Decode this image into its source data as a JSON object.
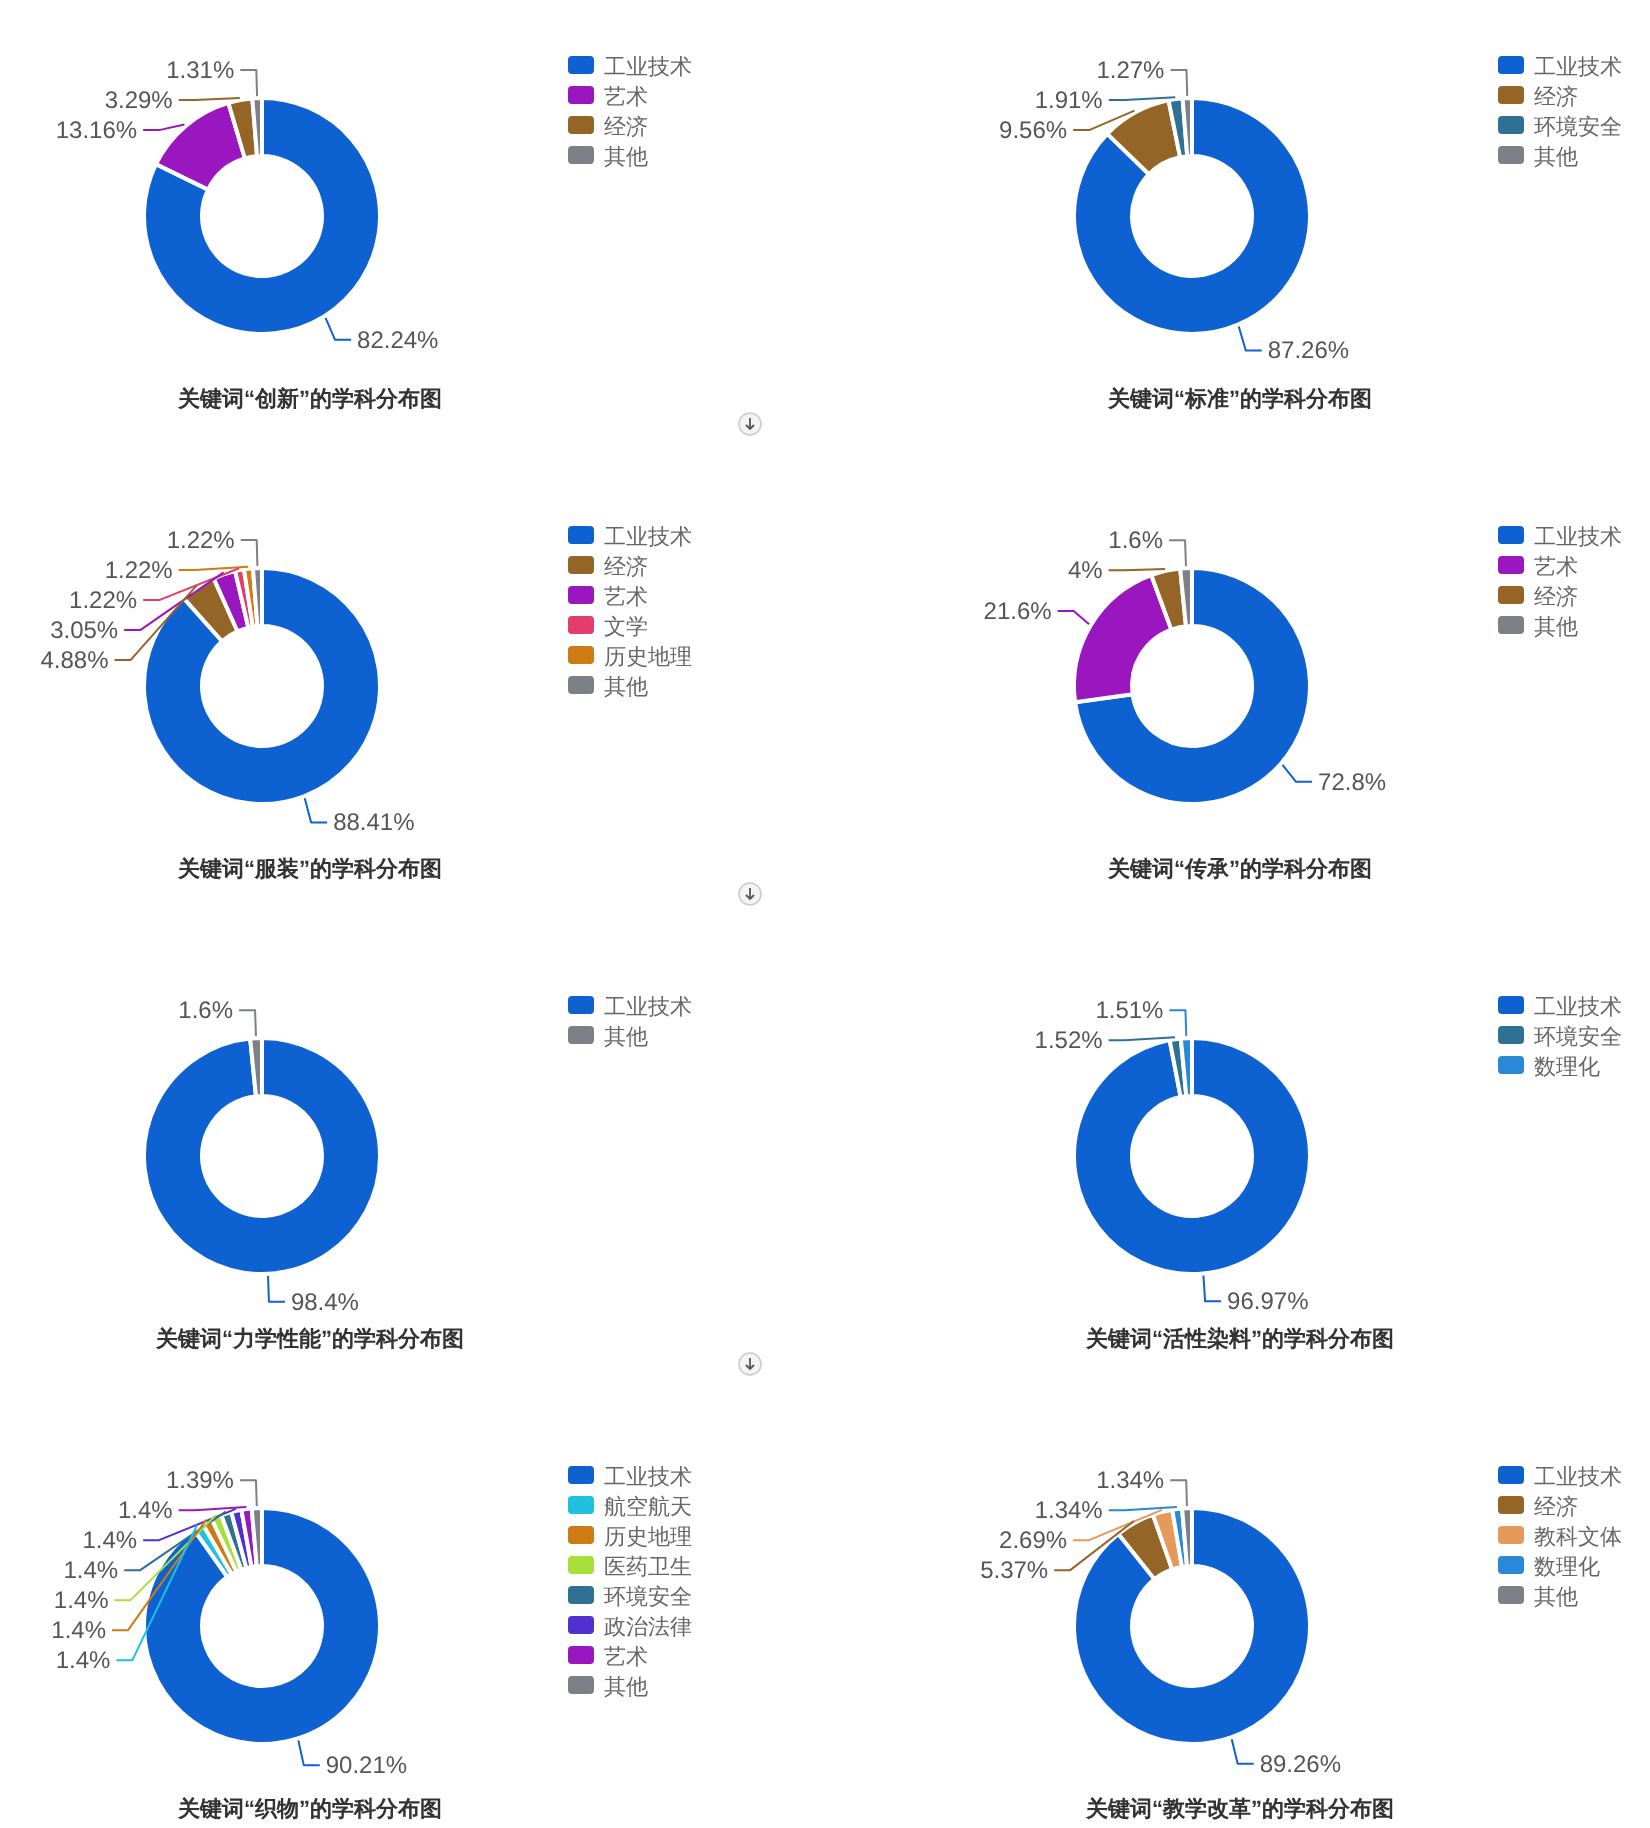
{
  "chart_data": [
    {
      "type": "donut",
      "title": "关键词“创新”的学科分布图",
      "legend": "top right",
      "categories": [
        "工业技术",
        "艺术",
        "经济",
        "其他"
      ],
      "values": [
        82.24,
        13.16,
        3.29,
        1.31
      ],
      "colors": [
        "#0e61d0",
        "#9a17c0",
        "#956527",
        "#7d8185"
      ],
      "value_labels": [
        "82.24%",
        "13.16%",
        "3.29%",
        "1.31%"
      ]
    },
    {
      "type": "donut",
      "title": "关键词“标准”的学科分布图",
      "legend": "top right",
      "categories": [
        "工业技术",
        "经济",
        "环境安全",
        "其他"
      ],
      "values": [
        87.26,
        9.56,
        1.91,
        1.27
      ],
      "colors": [
        "#0e61d0",
        "#956527",
        "#2f7194",
        "#7d8185"
      ],
      "value_labels": [
        "87.26%",
        "9.56%",
        "1.91%",
        "1.27%"
      ]
    },
    {
      "type": "donut",
      "title": "关键词“服装”的学科分布图",
      "legend": "top right",
      "categories": [
        "工业技术",
        "经济",
        "艺术",
        "文学",
        "历史地理",
        "其他"
      ],
      "values": [
        88.41,
        4.88,
        3.05,
        1.22,
        1.22,
        1.22
      ],
      "colors": [
        "#0e61d0",
        "#956527",
        "#9a17c0",
        "#e23d6c",
        "#d07a13",
        "#7d8185"
      ],
      "value_labels": [
        "88.41%",
        "4.88%",
        "3.05%",
        "1.22%",
        "1.22%",
        "1.22%"
      ]
    },
    {
      "type": "donut",
      "title": "关键词“传承”的学科分布图",
      "legend": "top right",
      "categories": [
        "工业技术",
        "艺术",
        "经济",
        "其他"
      ],
      "values": [
        72.8,
        21.6,
        4,
        1.6
      ],
      "colors": [
        "#0e61d0",
        "#9a17c0",
        "#956527",
        "#7d8185"
      ],
      "value_labels": [
        "72.8%",
        "21.6%",
        "4%",
        "1.6%"
      ]
    },
    {
      "type": "donut",
      "title": "关键词“力学性能”的学科分布图",
      "legend": "top right",
      "categories": [
        "工业技术",
        "其他"
      ],
      "values": [
        98.4,
        1.6
      ],
      "colors": [
        "#0e61d0",
        "#7d8185"
      ],
      "value_labels": [
        "98.4%",
        "1.6%"
      ]
    },
    {
      "type": "donut",
      "title": "关键词“活性染料”的学科分布图",
      "legend": "top right",
      "categories": [
        "工业技术",
        "环境安全",
        "数理化"
      ],
      "values": [
        96.97,
        1.52,
        1.51
      ],
      "colors": [
        "#0e61d0",
        "#2f7194",
        "#2a88d8"
      ],
      "value_labels": [
        "96.97%",
        "1.52%",
        "1.51%"
      ]
    },
    {
      "type": "donut",
      "title": "关键词“织物”的学科分布图",
      "legend": "top right",
      "categories": [
        "工业技术",
        "航空航天",
        "历史地理",
        "医药卫生",
        "环境安全",
        "政治法律",
        "艺术",
        "其他"
      ],
      "values": [
        90.21,
        1.4,
        1.4,
        1.4,
        1.4,
        1.4,
        1.4,
        1.39
      ],
      "colors": [
        "#0e61d0",
        "#1fc0e0",
        "#d07a13",
        "#a7e03a",
        "#2f7194",
        "#5030d0",
        "#9a17c0",
        "#7d8185"
      ],
      "value_labels": [
        "90.21%",
        "1.4%",
        "1.4%",
        "1.4%",
        "1.4%",
        "1.4%",
        "1.4%",
        "1.39%"
      ]
    },
    {
      "type": "donut",
      "title": "关键词“教学改革”的学科分布图",
      "legend": "top right",
      "categories": [
        "工业技术",
        "经济",
        "教科文体",
        "数理化",
        "其他"
      ],
      "values": [
        89.26,
        5.37,
        2.69,
        1.34,
        1.34
      ],
      "colors": [
        "#0e61d0",
        "#956527",
        "#e59a5c",
        "#2a88d8",
        "#7d8185"
      ],
      "value_labels": [
        "89.26%",
        "5.37%",
        "2.69%",
        "1.34%",
        "1.34%"
      ]
    }
  ]
}
